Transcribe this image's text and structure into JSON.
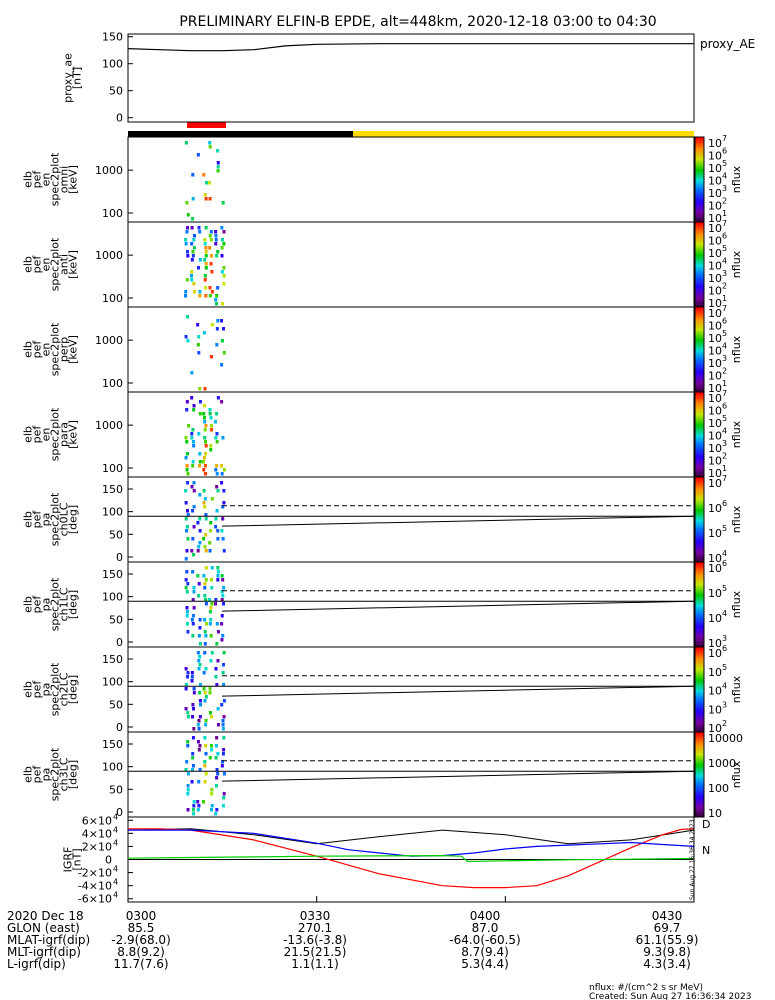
{
  "title": "PRELIMINARY ELFIN-B EPDE, alt=448km, 2020-12-18 03:00 to 04:30",
  "proxy_label": "proxy_AE",
  "colors": {
    "line_red": "#ff0000",
    "line_blue": "#0000ff",
    "line_green": "#00cc00",
    "bar_black": "#000000",
    "bar_yellow": "#ffdd00"
  },
  "chart_data": [
    {
      "type": "line",
      "ylabel_lines": [
        "proxy_ae",
        "[nT]"
      ],
      "ylim": [
        -8,
        155
      ],
      "yticks": [
        "0",
        "50",
        "100",
        "150"
      ],
      "series": [
        {
          "x": [
            0,
            5,
            10,
            15,
            20,
            25,
            30,
            40,
            60,
            90
          ],
          "values": [
            128,
            126,
            124,
            124,
            126,
            133,
            136,
            137,
            137,
            137
          ]
        }
      ]
    },
    {
      "type": "heatmap",
      "ylabel_lines": [
        "elb",
        "pef",
        "en",
        "spec2plot",
        "omni",
        "[keV]"
      ],
      "yticks": [
        "100",
        "1000"
      ],
      "colorbar_ticks": [
        "10",
        "10",
        "10",
        "10",
        "10",
        "10",
        "10"
      ],
      "colorbar_exps": [
        "1",
        "2",
        "3",
        "4",
        "5",
        "6",
        "7"
      ],
      "colorbar_label": "nflux"
    },
    {
      "type": "heatmap",
      "ylabel_lines": [
        "elb",
        "pef",
        "en",
        "spec2plot",
        "anti",
        "[keV]"
      ],
      "yticks": [
        "100",
        "1000"
      ],
      "colorbar_ticks": [
        "10",
        "10",
        "10",
        "10",
        "10",
        "10",
        "10"
      ],
      "colorbar_exps": [
        "1",
        "2",
        "3",
        "4",
        "5",
        "6",
        "7"
      ],
      "colorbar_label": "nflux"
    },
    {
      "type": "heatmap",
      "ylabel_lines": [
        "elb",
        "pef",
        "en",
        "spec2plot",
        "perp",
        "[keV]"
      ],
      "yticks": [
        "100",
        "1000"
      ],
      "colorbar_ticks": [
        "10",
        "10",
        "10",
        "10",
        "10",
        "10",
        "10"
      ],
      "colorbar_exps": [
        "1",
        "2",
        "3",
        "4",
        "5",
        "6",
        "7"
      ],
      "colorbar_label": "nflux"
    },
    {
      "type": "heatmap",
      "ylabel_lines": [
        "elb",
        "pef",
        "en",
        "spec2plot",
        "para",
        "[keV]"
      ],
      "yticks": [
        "100",
        "1000"
      ],
      "colorbar_ticks": [
        "10",
        "10",
        "10",
        "10",
        "10",
        "10",
        "10"
      ],
      "colorbar_exps": [
        "1",
        "2",
        "3",
        "4",
        "5",
        "6",
        "7"
      ],
      "colorbar_label": "nflux"
    },
    {
      "type": "heatmap",
      "ylabel_lines": [
        "elb",
        "pef",
        "pa",
        "spec2plot",
        "ch0LC",
        "[deg]"
      ],
      "yticks": [
        "0",
        "50",
        "100",
        "150"
      ],
      "colorbar_ticks": [
        "10",
        "10",
        "10",
        "10"
      ],
      "colorbar_exps": [
        "4",
        "5",
        "6",
        "7"
      ],
      "colorbar_label": "nflux"
    },
    {
      "type": "heatmap",
      "ylabel_lines": [
        "elb",
        "pef",
        "pa",
        "spec2plot",
        "ch1LC",
        "[deg]"
      ],
      "yticks": [
        "0",
        "50",
        "100",
        "150"
      ],
      "colorbar_ticks": [
        "10",
        "10",
        "10",
        "10"
      ],
      "colorbar_exps": [
        "3",
        "4",
        "5",
        "6"
      ],
      "colorbar_label": "nflux"
    },
    {
      "type": "heatmap",
      "ylabel_lines": [
        "elb",
        "pef",
        "pa",
        "spec2plot",
        "ch2LC",
        "[deg]"
      ],
      "yticks": [
        "0",
        "50",
        "100",
        "150"
      ],
      "colorbar_ticks": [
        "10",
        "10",
        "10",
        "10",
        "10"
      ],
      "colorbar_exps": [
        "2",
        "3",
        "4",
        "5",
        "6"
      ],
      "colorbar_label": "nflux"
    },
    {
      "type": "heatmap",
      "ylabel_lines": [
        "elb",
        "pef",
        "pa",
        "spec2plot",
        "ch3LC",
        "[deg]"
      ],
      "yticks": [
        "0",
        "50",
        "100",
        "150"
      ],
      "colorbar_ticks": [
        "10",
        "100",
        "1000",
        "10000"
      ],
      "colorbar_exps": [
        "",
        "",
        "",
        ""
      ],
      "colorbar_label": "nflux"
    },
    {
      "type": "line",
      "ylabel_lines": [
        "IGRF",
        "[nT]"
      ],
      "ylim": [
        -65000,
        65000
      ],
      "yticks": [
        "-6×10",
        "-4×10",
        "-2×10",
        "0",
        "2×10",
        "4×10",
        "6×10"
      ],
      "ytick_exps": [
        "4",
        "4",
        "4",
        "",
        "4",
        "4",
        "4"
      ],
      "legend": [
        "D",
        "N"
      ],
      "series": [
        {
          "x": [
            0,
            5,
            10,
            20,
            30,
            40,
            50,
            55,
            60,
            65,
            70,
            80,
            85,
            88,
            90
          ],
          "values": [
            47000,
            47000,
            45000,
            30000,
            5000,
            -22000,
            -40000,
            -43000,
            -43000,
            -40000,
            -25000,
            18000,
            38000,
            46000,
            47000
          ]
        },
        {
          "x": [
            0,
            10,
            20,
            30,
            35,
            40,
            45,
            50,
            55,
            60,
            65,
            70,
            75,
            80,
            85,
            90
          ],
          "values": [
            45000,
            45000,
            40000,
            25000,
            15000,
            10000,
            5000,
            6000,
            10000,
            16000,
            20000,
            22000,
            24000,
            26000,
            23000,
            20000
          ]
        },
        {
          "x": [
            0,
            10,
            20,
            30,
            40,
            50,
            53,
            54,
            60,
            70,
            80,
            90
          ],
          "values": [
            2000,
            3000,
            4000,
            5000,
            5500,
            6000,
            5000,
            -3000,
            -2000,
            -500,
            500,
            1500
          ]
        }
      ]
    }
  ],
  "orbit_rows": [
    {
      "label": "2020 Dec 18",
      "values": [
        "0300",
        "0330",
        "0400",
        "0430"
      ]
    },
    {
      "label": "GLON (east)",
      "values": [
        "85.5",
        "270.1",
        "87.0",
        "69.7"
      ]
    },
    {
      "label": "MLAT-igrf(dip)",
      "values": [
        "-2.9(68.0)",
        "-13.6(-3.8)",
        "-64.0(-60.5)",
        "61.1(55.9)"
      ]
    },
    {
      "label": "MLT-igrf(dip)",
      "values": [
        "8.8(9.2)",
        "21.5(21.5)",
        "8.7(9.4)",
        "9.3(9.8)"
      ]
    },
    {
      "label": "L-igrf(dip)",
      "values": [
        "11.7(7.6)",
        "1.1(1.1)",
        "5.3(4.4)",
        "4.3(3.4)"
      ]
    }
  ],
  "footer": {
    "units": "nflux: #/(cm^2 s sr MeV)",
    "created": "Created: Sun Aug 27 16:36:34 2023",
    "side_stamp": "Sun Aug 27 16:36:34 2023"
  }
}
